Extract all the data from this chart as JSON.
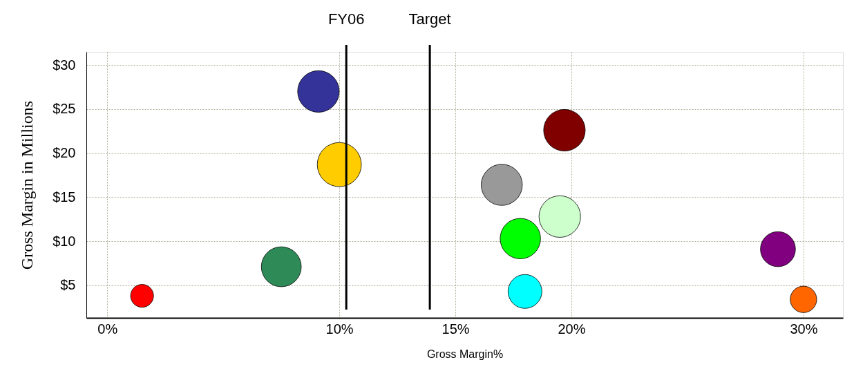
{
  "chart_data": {
    "type": "bubble",
    "xlabel": "Gross Margin%",
    "ylabel": "Gross Margin in Millions",
    "x": [
      1.5,
      7.5,
      9.1,
      10.0,
      17.0,
      17.8,
      18.0,
      19.5,
      19.7,
      28.9,
      30.0
    ],
    "values": [
      3.8,
      7.1,
      27.0,
      18.7,
      16.4,
      10.3,
      4.3,
      12.8,
      22.6,
      9.1,
      3.4
    ],
    "sizes": [
      0.27,
      0.82,
      0.89,
      1,
      0.87,
      0.84,
      0.59,
      0.89,
      0.89,
      0.63,
      0.36
    ],
    "colors": [
      "#ff0000",
      "#2e8b57",
      "#333399",
      "#ffcc00",
      "#999999",
      "#00ff00",
      "#00ffff",
      "#ccffcc",
      "#800000",
      "#800080",
      "#ff6600"
    ],
    "xlim": [
      -0.9,
      31.7
    ],
    "xticks": [
      {
        "value": 0,
        "label": "0%"
      },
      {
        "value": 10,
        "label": "10%"
      },
      {
        "value": 15,
        "label": "15%"
      },
      {
        "value": 20,
        "label": "20%"
      },
      {
        "value": 30,
        "label": "30%"
      }
    ],
    "ylim": [
      1.3,
      31.5
    ],
    "yticks": [
      {
        "value": 5,
        "label": "$5"
      },
      {
        "value": 10,
        "label": "$10"
      },
      {
        "value": 15,
        "label": "$15"
      },
      {
        "value": 20,
        "label": "$20"
      },
      {
        "value": 25,
        "label": "$25"
      },
      {
        "value": 30,
        "label": "$30"
      }
    ],
    "ref_lines": [
      {
        "axis": "x",
        "value": 10.3,
        "label": "FY06",
        "color": "#000000"
      },
      {
        "axis": "x",
        "value": 13.9,
        "label": "Target",
        "color": "#000000"
      }
    ],
    "grid": true
  }
}
